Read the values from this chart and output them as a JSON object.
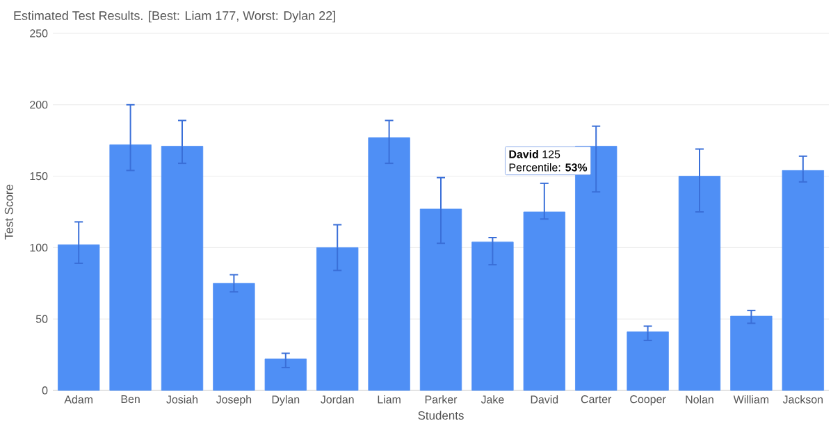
{
  "chart_data": {
    "type": "bar",
    "title": "Estimated Test Results. [Best: Liam 177, Worst: Dylan 22]",
    "xlabel": "Students",
    "ylabel": "Test Score",
    "categories": [
      "Adam",
      "Ben",
      "Josiah",
      "Joseph",
      "Dylan",
      "Jordan",
      "Liam",
      "Parker",
      "Jake",
      "David",
      "Carter",
      "Cooper",
      "Nolan",
      "William",
      "Jackson"
    ],
    "values": [
      102,
      172,
      171,
      75,
      22,
      100,
      177,
      127,
      104,
      125,
      171,
      41,
      150,
      52,
      154
    ],
    "errors": [
      [
        89,
        118
      ],
      [
        154,
        200
      ],
      [
        159,
        189
      ],
      [
        69,
        81
      ],
      [
        16,
        26
      ],
      [
        84,
        116
      ],
      [
        159,
        189
      ],
      [
        103,
        149
      ],
      [
        88,
        107
      ],
      [
        120,
        145
      ],
      [
        139,
        185
      ],
      [
        35,
        45
      ],
      [
        125,
        169
      ],
      [
        47,
        56
      ],
      [
        146,
        164
      ]
    ],
    "color": "#4f8ff5",
    "ylim": [
      0,
      250
    ],
    "yticks": [
      0,
      50,
      100,
      150,
      200,
      250
    ],
    "grid": "y",
    "annotations": [
      "**David** 125",
      "Percentile: **53%**"
    ]
  }
}
